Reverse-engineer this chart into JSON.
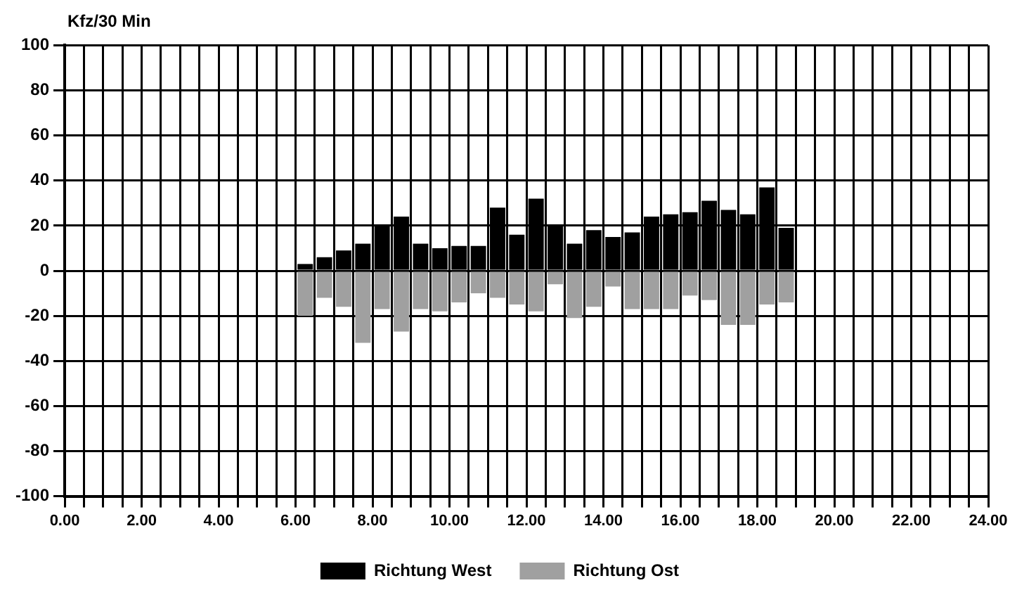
{
  "chart_data": {
    "type": "bar",
    "ylabel": "Kfz/30 Min",
    "x": [
      6.25,
      6.75,
      7.25,
      7.75,
      8.25,
      8.75,
      9.25,
      9.75,
      10.25,
      10.75,
      11.25,
      11.75,
      12.25,
      12.75,
      13.25,
      13.75,
      14.25,
      14.75,
      15.25,
      15.75,
      16.25,
      16.75,
      17.25,
      17.75,
      18.25,
      18.75
    ],
    "series": [
      {
        "name": "Richtung West",
        "color": "#000000",
        "values": [
          3,
          6,
          9,
          12,
          20,
          24,
          12,
          10,
          11,
          11,
          28,
          16,
          32,
          20,
          12,
          18,
          15,
          17,
          24,
          25,
          26,
          31,
          27,
          25,
          37,
          19
        ]
      },
      {
        "name": "Richtung Ost",
        "color": "#a0a0a0",
        "values": [
          -20,
          -12,
          -16,
          -32,
          -17,
          -27,
          -17,
          -18,
          -14,
          -10,
          -12,
          -15,
          -18,
          -6,
          -21,
          -16,
          -7,
          -17,
          -17,
          -17,
          -11,
          -13,
          -24,
          -24,
          -15,
          -14
        ]
      }
    ],
    "xlim": [
      0,
      24
    ],
    "xticks": [
      {
        "value": 0,
        "label": "0.00"
      },
      {
        "value": 0.5,
        "label": null
      },
      {
        "value": 1,
        "label": null
      },
      {
        "value": 1.5,
        "label": null
      },
      {
        "value": 2,
        "label": "2.00"
      },
      {
        "value": 2.5,
        "label": null
      },
      {
        "value": 3,
        "label": null
      },
      {
        "value": 3.5,
        "label": null
      },
      {
        "value": 4,
        "label": "4.00"
      },
      {
        "value": 4.5,
        "label": null
      },
      {
        "value": 5,
        "label": null
      },
      {
        "value": 5.5,
        "label": null
      },
      {
        "value": 6,
        "label": "6.00"
      },
      {
        "value": 6.5,
        "label": null
      },
      {
        "value": 7,
        "label": null
      },
      {
        "value": 7.5,
        "label": null
      },
      {
        "value": 8,
        "label": "8.00"
      },
      {
        "value": 8.5,
        "label": null
      },
      {
        "value": 9,
        "label": null
      },
      {
        "value": 9.5,
        "label": null
      },
      {
        "value": 10,
        "label": "10.00"
      },
      {
        "value": 10.5,
        "label": null
      },
      {
        "value": 11,
        "label": null
      },
      {
        "value": 11.5,
        "label": null
      },
      {
        "value": 12,
        "label": "12.00"
      },
      {
        "value": 12.5,
        "label": null
      },
      {
        "value": 13,
        "label": null
      },
      {
        "value": 13.5,
        "label": null
      },
      {
        "value": 14,
        "label": "14.00"
      },
      {
        "value": 14.5,
        "label": null
      },
      {
        "value": 15,
        "label": null
      },
      {
        "value": 15.5,
        "label": null
      },
      {
        "value": 16,
        "label": "16.00"
      },
      {
        "value": 16.5,
        "label": null
      },
      {
        "value": 17,
        "label": null
      },
      {
        "value": 17.5,
        "label": null
      },
      {
        "value": 18,
        "label": "18.00"
      },
      {
        "value": 18.5,
        "label": null
      },
      {
        "value": 19,
        "label": null
      },
      {
        "value": 19.5,
        "label": null
      },
      {
        "value": 20,
        "label": "20.00"
      },
      {
        "value": 20.5,
        "label": null
      },
      {
        "value": 21,
        "label": null
      },
      {
        "value": 21.5,
        "label": null
      },
      {
        "value": 22,
        "label": "22.00"
      },
      {
        "value": 22.5,
        "label": null
      },
      {
        "value": 23,
        "label": null
      },
      {
        "value": 23.5,
        "label": null
      },
      {
        "value": 24,
        "label": "24.00"
      }
    ],
    "ylim": [
      -100,
      100
    ],
    "yticks": [
      -100,
      -80,
      -60,
      -40,
      -20,
      0,
      20,
      40,
      60,
      80,
      100
    ],
    "grid": true,
    "legend": "bottom",
    "stacked": true
  }
}
